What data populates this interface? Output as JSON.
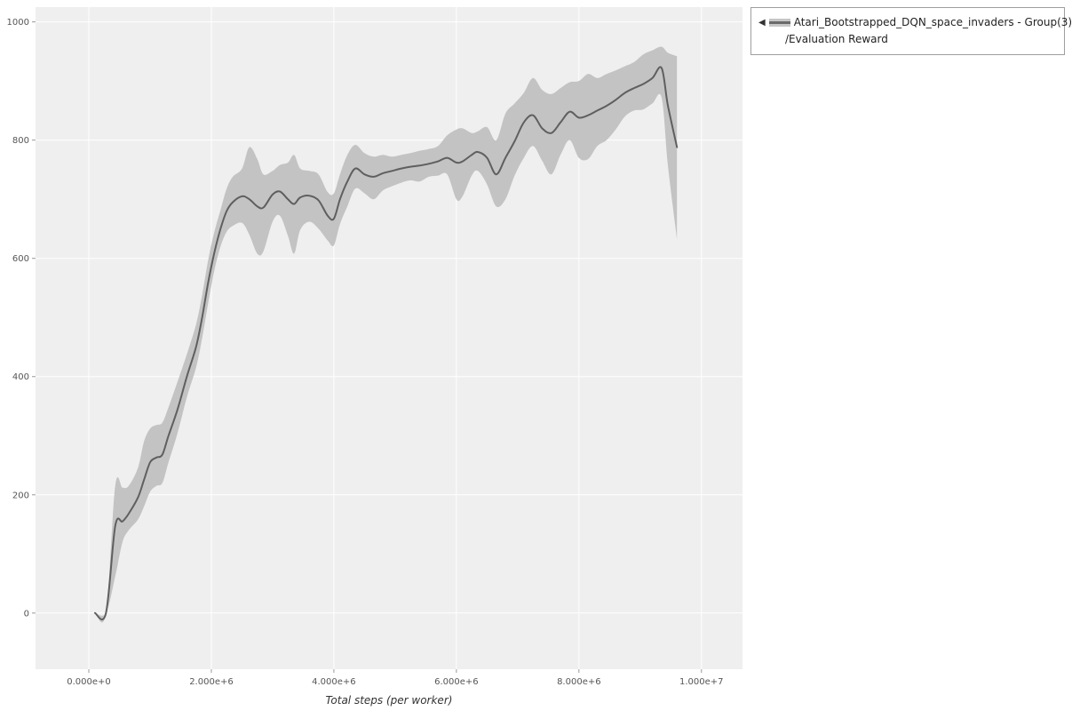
{
  "page": {
    "background": "#ffffff"
  },
  "legend": {
    "collapse_icon": "◀",
    "label_line1": "Atari_Bootstrapped_DQN_space_invaders - Group(3)",
    "label_line2": "/Evaluation Reward",
    "swatch_band_color": "#c6c6c6",
    "swatch_line_color": "#6a6a6a"
  },
  "chart_data": {
    "type": "line",
    "title": "",
    "xlabel": "Total steps (per worker)",
    "ylabel": "",
    "legend_position": "top-right-outside",
    "grid": true,
    "plot_background": "#efefef",
    "grid_color": "#ffffff",
    "tick_color": "#555555",
    "x_unit_multiplier": 1000000,
    "xlim": [
      -870000,
      10670000
    ],
    "ylim": [
      -95,
      1025
    ],
    "x_ticks": {
      "values": [
        0,
        2000000,
        4000000,
        6000000,
        8000000,
        10000000
      ],
      "labels": [
        "0.000e+0",
        "2.000e+6",
        "4.000e+6",
        "6.000e+6",
        "8.000e+6",
        "1.000e+7"
      ]
    },
    "y_ticks": {
      "values": [
        0,
        200,
        400,
        600,
        800,
        1000
      ],
      "labels": [
        "0",
        "200",
        "400",
        "600",
        "800",
        "1000"
      ]
    },
    "series": [
      {
        "name": "Atari_Bootstrapped_DQN_space_invaders - Group(3)/Evaluation Reward",
        "line_color": "#5f5f5f",
        "band_color": "#c3c3c3",
        "x_millions": [
          0.1,
          0.28,
          0.43,
          0.55,
          0.65,
          0.8,
          0.9,
          1.0,
          1.1,
          1.2,
          1.3,
          1.45,
          1.6,
          1.75,
          1.85,
          1.95,
          2.05,
          2.15,
          2.25,
          2.35,
          2.5,
          2.62,
          2.75,
          2.85,
          3.0,
          3.12,
          3.25,
          3.35,
          3.45,
          3.6,
          3.75,
          3.9,
          4.0,
          4.1,
          4.22,
          4.35,
          4.5,
          4.65,
          4.8,
          4.95,
          5.1,
          5.25,
          5.4,
          5.55,
          5.7,
          5.85,
          6.0,
          6.1,
          6.25,
          6.35,
          6.5,
          6.65,
          6.8,
          6.95,
          7.1,
          7.25,
          7.4,
          7.55,
          7.7,
          7.85,
          8.0,
          8.15,
          8.3,
          8.45,
          8.6,
          8.75,
          8.9,
          9.05,
          9.2,
          9.35,
          9.45,
          9.6
        ],
        "mean": [
          0,
          0,
          147,
          155,
          168,
          195,
          225,
          255,
          263,
          268,
          300,
          345,
          400,
          450,
          500,
          560,
          610,
          650,
          680,
          695,
          705,
          700,
          688,
          686,
          708,
          713,
          700,
          692,
          703,
          706,
          698,
          672,
          667,
          700,
          730,
          752,
          742,
          738,
          744,
          748,
          752,
          755,
          757,
          760,
          764,
          770,
          762,
          764,
          775,
          780,
          770,
          742,
          770,
          798,
          830,
          842,
          820,
          812,
          830,
          848,
          838,
          842,
          850,
          858,
          868,
          880,
          888,
          895,
          905,
          922,
          860,
          788
        ],
        "lower": [
          0,
          0,
          62,
          120,
          140,
          158,
          180,
          205,
          215,
          220,
          255,
          305,
          365,
          415,
          465,
          525,
          580,
          620,
          645,
          655,
          660,
          640,
          608,
          612,
          662,
          672,
          638,
          608,
          648,
          662,
          650,
          630,
          622,
          658,
          688,
          718,
          710,
          700,
          715,
          722,
          728,
          732,
          730,
          738,
          740,
          742,
          700,
          705,
          740,
          748,
          725,
          688,
          700,
          740,
          770,
          790,
          765,
          742,
          775,
          800,
          770,
          768,
          790,
          800,
          818,
          840,
          850,
          852,
          862,
          872,
          760,
          632
        ],
        "upper": [
          0,
          0,
          215,
          212,
          215,
          245,
          290,
          312,
          318,
          322,
          348,
          392,
          438,
          488,
          538,
          598,
          645,
          682,
          718,
          738,
          752,
          788,
          768,
          742,
          748,
          758,
          762,
          775,
          752,
          748,
          742,
          712,
          710,
          742,
          775,
          792,
          778,
          772,
          775,
          772,
          775,
          778,
          782,
          785,
          790,
          808,
          818,
          820,
          812,
          815,
          822,
          800,
          845,
          862,
          880,
          905,
          885,
          878,
          888,
          898,
          900,
          912,
          905,
          912,
          918,
          925,
          932,
          945,
          952,
          958,
          948,
          942
        ]
      }
    ]
  }
}
